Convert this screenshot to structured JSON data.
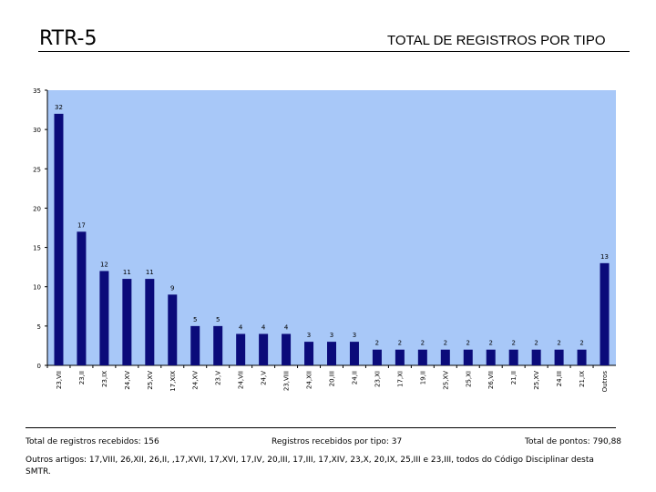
{
  "header": {
    "title_left": "RTR-5",
    "title_right": "TOTAL DE REGISTROS POR TIPO"
  },
  "chart_data": {
    "type": "bar",
    "categories": [
      "23,VII",
      "23,II",
      "23,IX",
      "24,XV",
      "25,XV",
      "17,XIX",
      "24,XV",
      "23,V",
      "24,VII",
      "24,V",
      "23,VIII",
      "24,XII",
      "20,III",
      "24,II",
      "23,XI",
      "17,XI",
      "19,II",
      "25,XV",
      "25,XI",
      "26,VII",
      "21,II",
      "25,XV",
      "24,III",
      "21,IX",
      "Outros"
    ],
    "values": [
      32,
      17,
      12,
      11,
      11,
      9,
      5,
      5,
      4,
      4,
      4,
      3,
      3,
      3,
      2,
      2,
      2,
      2,
      2,
      2,
      2,
      2,
      2,
      2,
      13
    ],
    "ylim": [
      0,
      35
    ],
    "yticks": [
      0,
      5,
      10,
      15,
      20,
      25,
      30,
      35
    ],
    "grid": false,
    "bar_color": "#0b0b7a",
    "plot_bg": "#a8c8f8"
  },
  "footer": {
    "total_received": "Total de registros recebidos: 156",
    "per_type": "Registros recebidos por tipo: 37",
    "total_points": "Total de pontos: 790,88",
    "other_articles": "Outros artigos: 17,VIII, 26,XII, 26,II, ,17,XVII, 17,XVI, 17,IV, 20,III, 17,III, 17,XIV, 23,X, 20,IX, 25,III e 23,III, todos do Código Disciplinar desta SMTR."
  }
}
